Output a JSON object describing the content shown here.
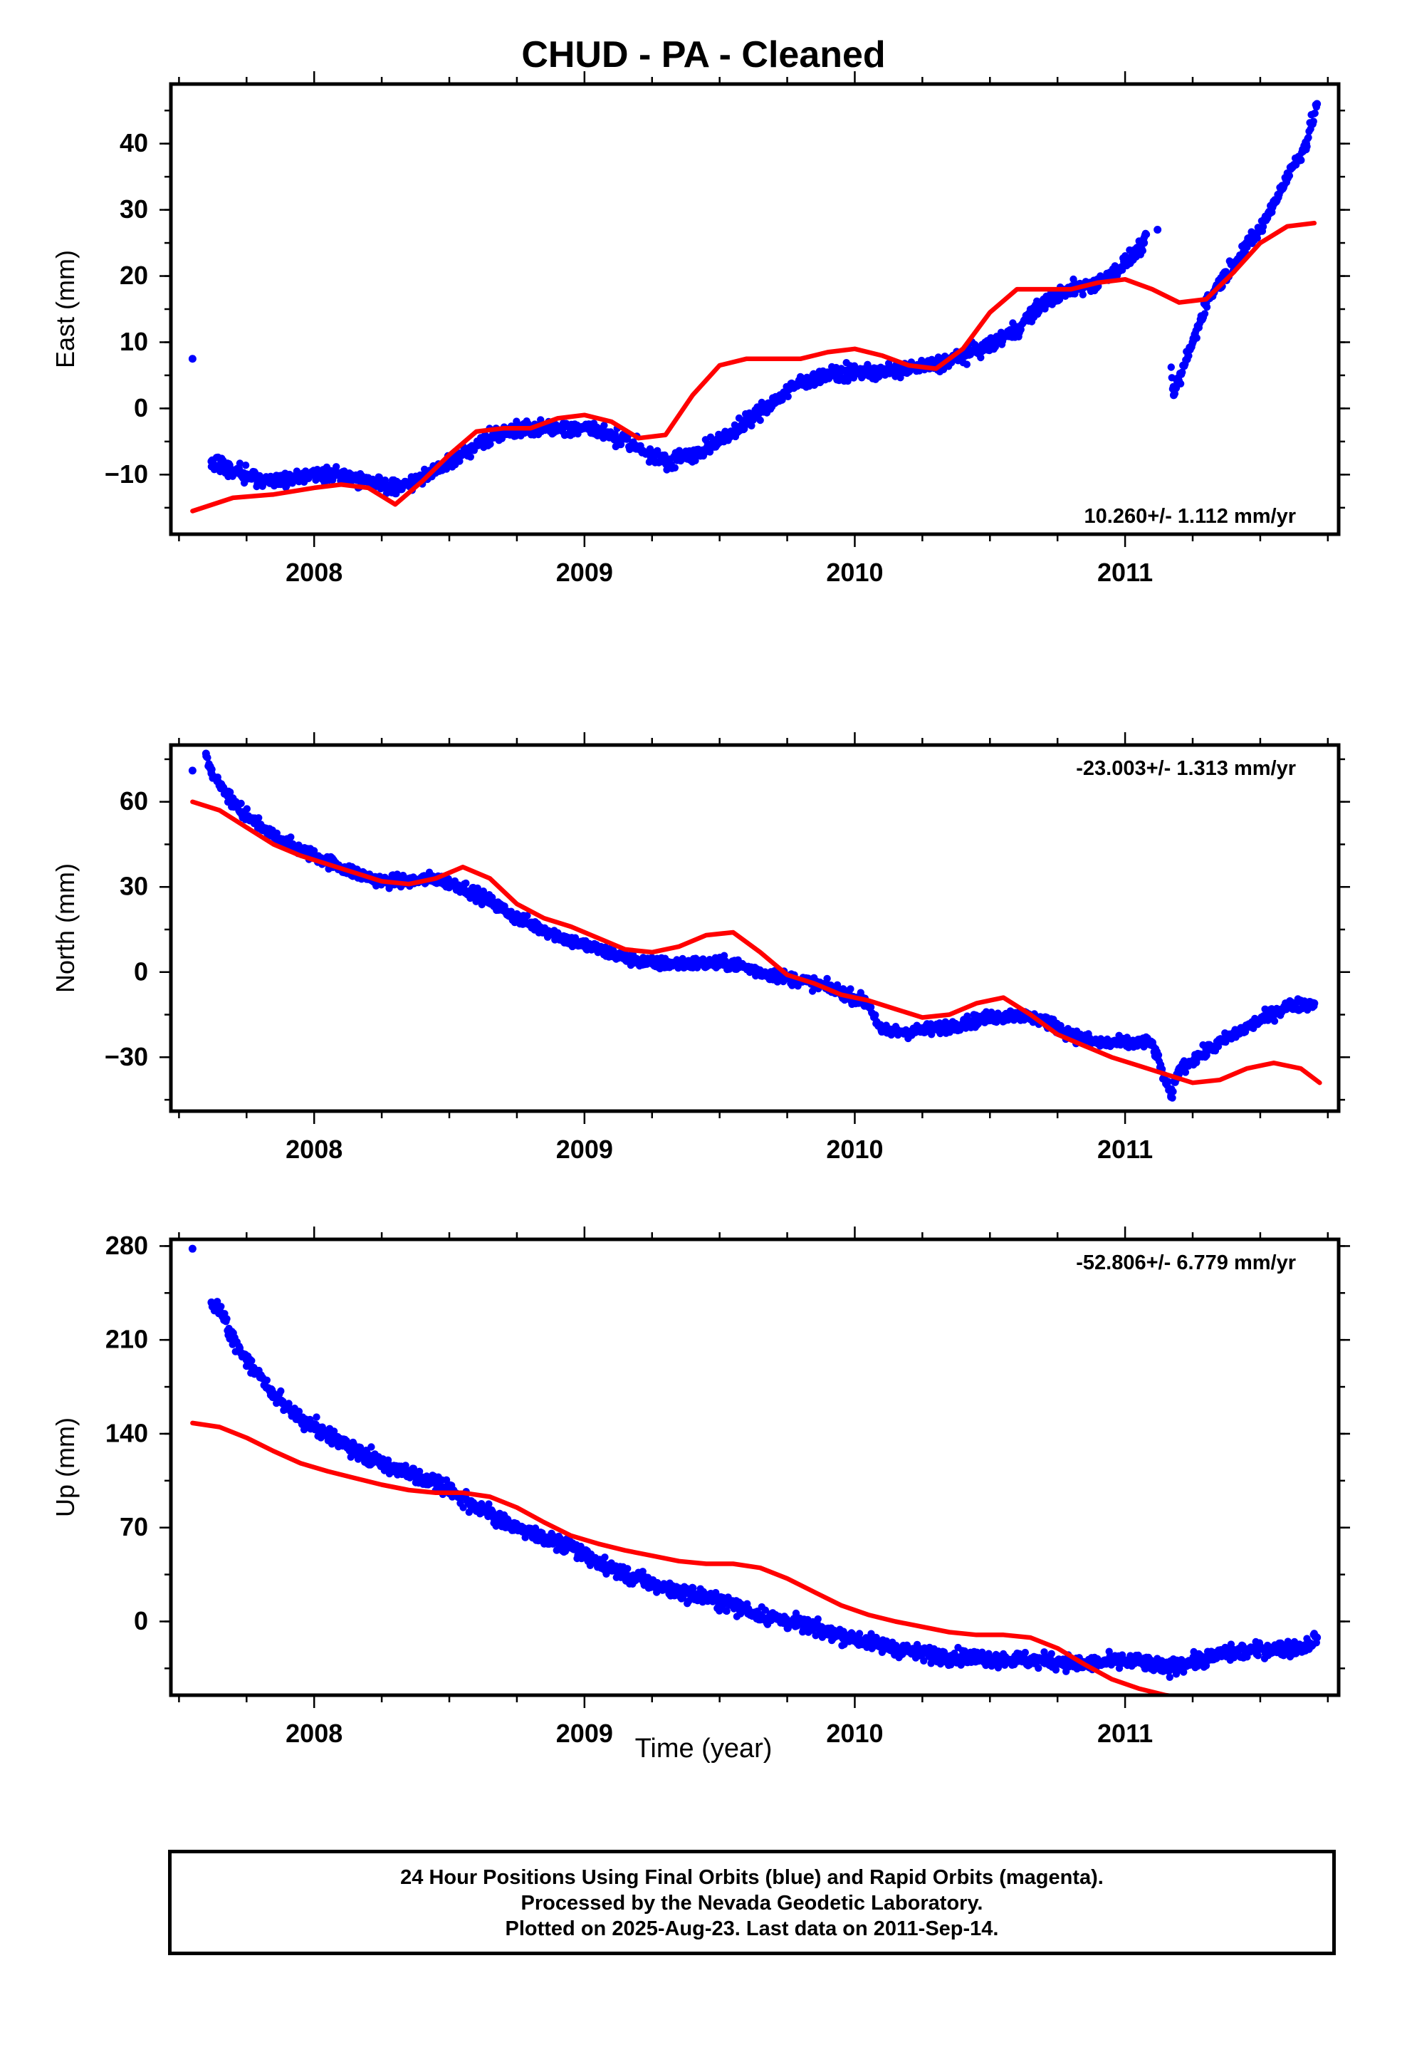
{
  "title": "CHUD  - PA - Cleaned",
  "x_axis_title": "Time (year)",
  "footer": [
    "24 Hour Positions Using Final Orbits (blue) and Rapid Orbits (magenta).",
    "Processed by the Nevada Geodetic Laboratory.",
    "Plotted on 2025-Aug-23. Last data on 2011-Sep-14."
  ],
  "colors": {
    "points": "#0000ff",
    "fit": "#ff0000"
  },
  "chart_data": [
    {
      "type": "scatter",
      "ylabel": "East (mm)",
      "xlabel": "",
      "rate_label": "10.260+/- 1.112 mm/yr",
      "rate_position": "bottom-right",
      "xlim": [
        2007.47,
        2011.79
      ],
      "ylim": [
        -19,
        49
      ],
      "x_ticks": [
        2008,
        2009,
        2010,
        2011
      ],
      "y_ticks": [
        -10,
        0,
        10,
        20,
        30,
        40
      ],
      "grid": false,
      "series": [
        {
          "kind": "points",
          "x": [
            2007.55,
            2007.62,
            2007.7,
            2007.8,
            2007.9,
            2008.0,
            2008.1,
            2008.2,
            2008.3,
            2008.4,
            2008.5,
            2008.6,
            2008.7,
            2008.8,
            2008.9,
            2009.0,
            2009.1,
            2009.2,
            2009.3,
            2009.4,
            2009.5,
            2009.6,
            2009.7,
            2009.8,
            2009.9,
            2010.0,
            2010.1,
            2010.2,
            2010.3,
            2010.4,
            2010.5,
            2010.6,
            2010.7,
            2010.8,
            2010.9,
            2011.0,
            2011.07,
            2011.12,
            2011.18,
            2011.25,
            2011.3,
            2011.4,
            2011.5,
            2011.6,
            2011.67,
            2011.71
          ],
          "y": [
            7.5,
            -8,
            -9.5,
            -11,
            -10.5,
            -10,
            -10,
            -11,
            -12,
            -10.5,
            -8,
            -5.5,
            -3.5,
            -3,
            -3,
            -3,
            -4,
            -6,
            -8,
            -7,
            -5,
            -2,
            1,
            4,
            5,
            5.5,
            5.5,
            6,
            6.5,
            8,
            9.5,
            12,
            16,
            18,
            19,
            22,
            25,
            27,
            2,
            10,
            16,
            22,
            27,
            35,
            40,
            46
          ]
        },
        {
          "kind": "fit",
          "x": [
            2007.55,
            2007.7,
            2007.85,
            2008.0,
            2008.1,
            2008.2,
            2008.3,
            2008.4,
            2008.5,
            2008.6,
            2008.7,
            2008.8,
            2008.9,
            2009.0,
            2009.1,
            2009.2,
            2009.3,
            2009.4,
            2009.5,
            2009.6,
            2009.7,
            2009.8,
            2009.9,
            2010.0,
            2010.1,
            2010.2,
            2010.3,
            2010.4,
            2010.5,
            2010.6,
            2010.7,
            2010.8,
            2010.9,
            2011.0,
            2011.1,
            2011.2,
            2011.3,
            2011.4,
            2011.5,
            2011.6,
            2011.7
          ],
          "y": [
            -15.5,
            -13.5,
            -13,
            -12,
            -11.5,
            -12,
            -14.5,
            -11,
            -7,
            -3.5,
            -3,
            -3,
            -1.5,
            -1,
            -2,
            -4.5,
            -4,
            2,
            6.5,
            7.5,
            7.5,
            7.5,
            8.5,
            9,
            8,
            6.5,
            6,
            9,
            14.5,
            18,
            18,
            18,
            19,
            19.5,
            18,
            16,
            16.5,
            20.5,
            25,
            27.5,
            28
          ]
        }
      ]
    },
    {
      "type": "scatter",
      "ylabel": "North (mm)",
      "xlabel": "",
      "rate_label": "-23.003+/- 1.313 mm/yr",
      "rate_position": "top-right",
      "xlim": [
        2007.47,
        2011.79
      ],
      "ylim": [
        -49,
        80
      ],
      "x_ticks": [
        2008,
        2009,
        2010,
        2011
      ],
      "y_ticks": [
        -30,
        0,
        30,
        60
      ],
      "grid": false,
      "series": [
        {
          "kind": "points",
          "x": [
            2007.55,
            2007.6,
            2007.62,
            2007.68,
            2007.75,
            2007.85,
            2007.95,
            2008.05,
            2008.15,
            2008.25,
            2008.35,
            2008.45,
            2008.55,
            2008.65,
            2008.75,
            2008.85,
            2008.95,
            2009.05,
            2009.15,
            2009.25,
            2009.35,
            2009.45,
            2009.55,
            2009.65,
            2009.75,
            2009.85,
            2009.95,
            2010.05,
            2010.1,
            2010.2,
            2010.3,
            2010.4,
            2010.5,
            2010.6,
            2010.7,
            2010.8,
            2010.9,
            2011.0,
            2011.1,
            2011.17,
            2011.2,
            2011.3,
            2011.4,
            2011.5,
            2011.6,
            2011.7
          ],
          "y": [
            71,
            77,
            70,
            62,
            55,
            48,
            43,
            39,
            35,
            32,
            32,
            33,
            30,
            25,
            19,
            15,
            11,
            8,
            5,
            3,
            3,
            3,
            3,
            0,
            -2,
            -4,
            -7,
            -11,
            -21,
            -21,
            -20,
            -18,
            -16,
            -15,
            -17,
            -22,
            -25,
            -25,
            -25,
            -44,
            -34,
            -28,
            -22,
            -17,
            -12,
            -11
          ]
        },
        {
          "kind": "fit",
          "x": [
            2007.55,
            2007.65,
            2007.75,
            2007.85,
            2007.95,
            2008.05,
            2008.15,
            2008.25,
            2008.35,
            2008.45,
            2008.55,
            2008.65,
            2008.75,
            2008.85,
            2008.95,
            2009.05,
            2009.15,
            2009.25,
            2009.35,
            2009.45,
            2009.55,
            2009.65,
            2009.75,
            2009.85,
            2009.95,
            2010.05,
            2010.15,
            2010.25,
            2010.35,
            2010.45,
            2010.55,
            2010.65,
            2010.75,
            2010.85,
            2010.95,
            2011.05,
            2011.15,
            2011.25,
            2011.35,
            2011.45,
            2011.55,
            2011.65,
            2011.72
          ],
          "y": [
            60,
            57,
            51,
            45,
            41,
            38,
            35,
            32,
            31,
            33,
            37,
            33,
            24,
            19,
            16,
            12,
            8,
            7,
            9,
            13,
            14,
            7,
            -1,
            -4,
            -8,
            -10,
            -13,
            -16,
            -15,
            -11,
            -9,
            -15,
            -22,
            -26,
            -30,
            -33,
            -36,
            -39,
            -38,
            -34,
            -32,
            -34,
            -39
          ]
        }
      ]
    },
    {
      "type": "scatter",
      "ylabel": "Up (mm)",
      "xlabel": "Time (year)",
      "rate_label": "-52.806+/- 6.779 mm/yr",
      "rate_position": "top-right",
      "xlim": [
        2007.47,
        2011.79
      ],
      "ylim": [
        -55,
        285
      ],
      "x_ticks": [
        2008,
        2009,
        2010,
        2011
      ],
      "y_ticks": [
        0,
        70,
        140,
        210,
        280
      ],
      "grid": false,
      "series": [
        {
          "kind": "points",
          "x": [
            2007.55,
            2007.62,
            2007.65,
            2007.7,
            2007.75,
            2007.8,
            2007.85,
            2007.9,
            2007.95,
            2008.05,
            2008.15,
            2008.25,
            2008.35,
            2008.45,
            2008.55,
            2008.65,
            2008.75,
            2008.85,
            2008.95,
            2009.05,
            2009.15,
            2009.25,
            2009.35,
            2009.45,
            2009.55,
            2009.65,
            2009.75,
            2009.85,
            2009.95,
            2010.05,
            2010.15,
            2010.25,
            2010.35,
            2010.45,
            2010.55,
            2010.65,
            2010.75,
            2010.85,
            2010.95,
            2011.05,
            2011.15,
            2011.25,
            2011.35,
            2011.45,
            2011.55,
            2011.65,
            2011.71
          ],
          "y": [
            278,
            238,
            232,
            210,
            195,
            182,
            170,
            160,
            152,
            140,
            127,
            118,
            110,
            103,
            93,
            80,
            70,
            62,
            55,
            44,
            35,
            28,
            22,
            18,
            12,
            5,
            0,
            -5,
            -10,
            -15,
            -20,
            -24,
            -26,
            -27,
            -28,
            -29,
            -30,
            -32,
            -30,
            -30,
            -35,
            -30,
            -25,
            -22,
            -20,
            -20,
            -12
          ]
        },
        {
          "kind": "fit",
          "x": [
            2007.55,
            2007.65,
            2007.75,
            2007.85,
            2007.95,
            2008.05,
            2008.15,
            2008.25,
            2008.35,
            2008.45,
            2008.55,
            2008.65,
            2008.75,
            2008.85,
            2008.95,
            2009.05,
            2009.15,
            2009.25,
            2009.35,
            2009.45,
            2009.55,
            2009.65,
            2009.75,
            2009.85,
            2009.95,
            2010.05,
            2010.15,
            2010.25,
            2010.35,
            2010.45,
            2010.55,
            2010.65,
            2010.75,
            2010.85,
            2010.95,
            2011.05,
            2011.15,
            2011.25
          ],
          "y": [
            148,
            145,
            137,
            127,
            118,
            112,
            107,
            102,
            98,
            96,
            96,
            93,
            85,
            74,
            64,
            58,
            53,
            49,
            45,
            43,
            43,
            40,
            32,
            22,
            12,
            5,
            0,
            -4,
            -8,
            -10,
            -10,
            -12,
            -20,
            -32,
            -43,
            -50,
            -55,
            -58
          ]
        }
      ]
    }
  ]
}
